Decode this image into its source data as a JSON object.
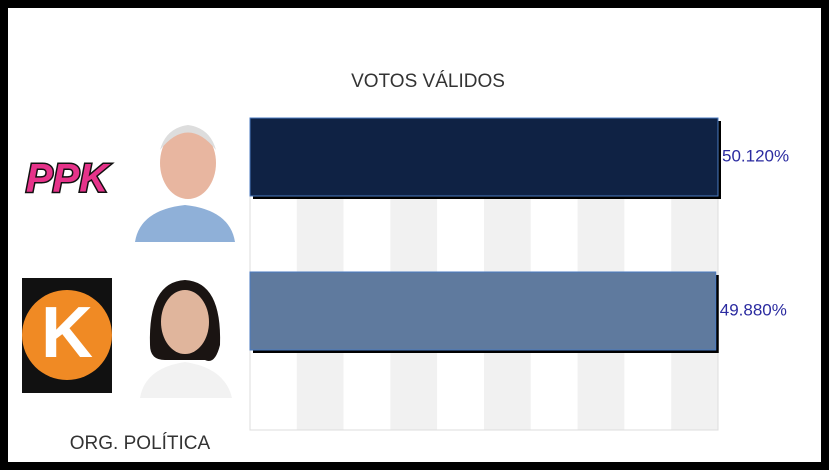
{
  "chart_data": {
    "type": "hbar",
    "title": "VOTOS VÁLIDOS",
    "y_label": "ORG. POLÍTICA",
    "categories": [
      "PPK",
      "K"
    ],
    "values": [
      50.12,
      49.88
    ],
    "value_labels": [
      "50.120%",
      "49.880%"
    ],
    "colors": [
      "#0f2244",
      "#5f7a9e"
    ],
    "xlim": [
      0,
      50.12
    ],
    "grid": true
  }
}
